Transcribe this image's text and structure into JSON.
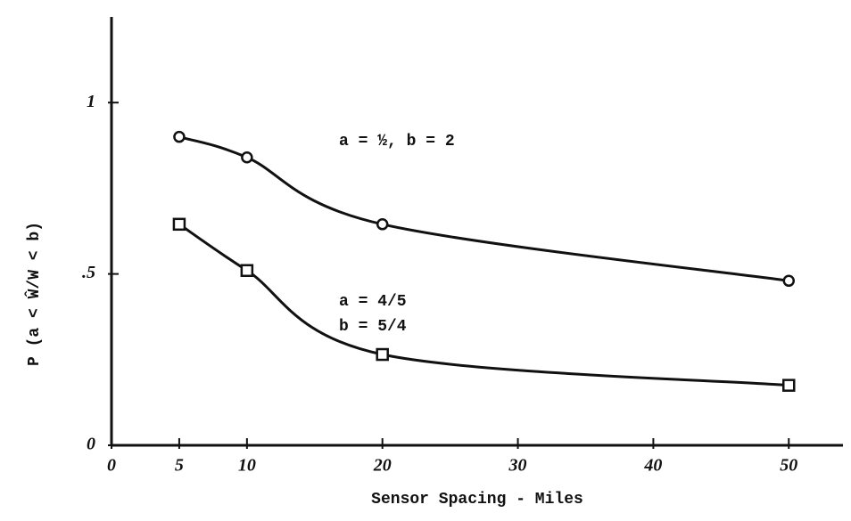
{
  "chart_data": {
    "type": "line",
    "x_label": "Sensor Spacing - Miles",
    "y_label": "P (a < Ŵ/W < b)",
    "x": [
      5,
      10,
      20,
      50
    ],
    "series": [
      {
        "name": "a = ½, b = 2",
        "color": "#111111",
        "marker": "circle",
        "values": [
          0.9,
          0.84,
          0.645,
          0.48
        ]
      },
      {
        "name": "a = 4/5\nb = 5/4",
        "color": "#111111",
        "marker": "square",
        "values": [
          0.645,
          0.51,
          0.265,
          0.175
        ]
      }
    ],
    "annotations": [
      "a = ½, b = 2",
      "a = 4/5",
      "b = 5/4"
    ],
    "xlim": [
      0,
      54
    ],
    "xticks": [
      0,
      5,
      10,
      20,
      30,
      40,
      50
    ],
    "ylim": [
      0,
      1.25
    ],
    "yticks": [
      0,
      {
        "value": 0.5,
        "label": ".5"
      },
      1
    ]
  }
}
